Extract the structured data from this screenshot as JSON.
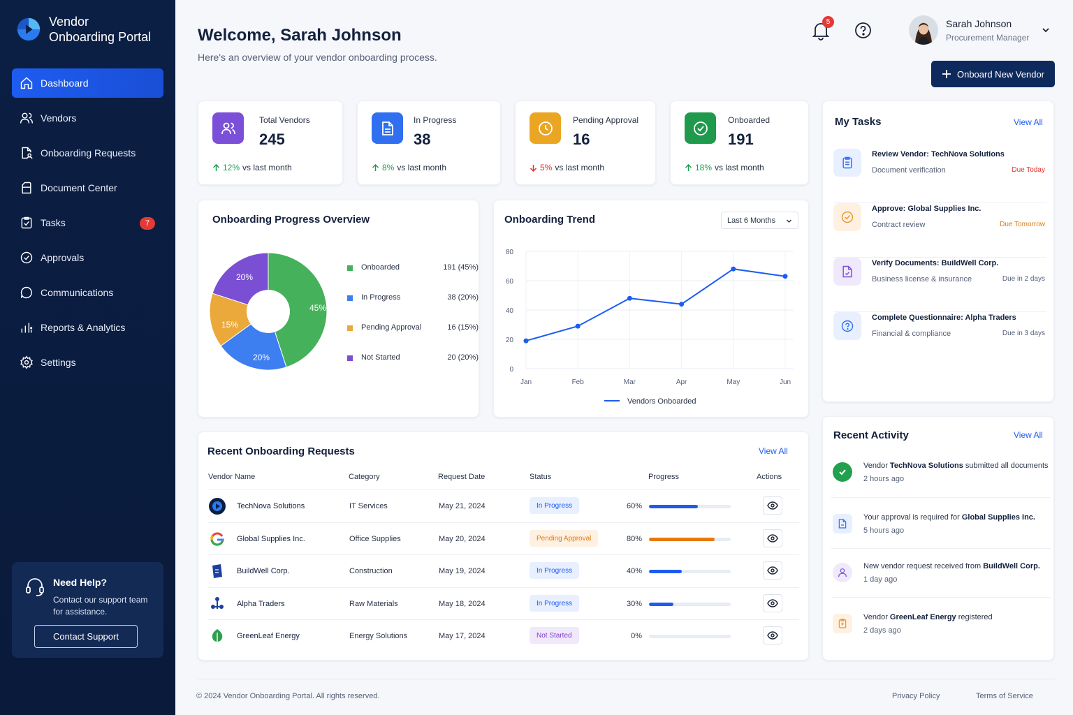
{
  "brand": {
    "line1": "Vendor",
    "line2": "Onboarding Portal"
  },
  "nav": [
    {
      "label": "Dashboard",
      "icon": "home-icon"
    },
    {
      "label": "Vendors",
      "icon": "users-icon"
    },
    {
      "label": "Onboarding Requests",
      "icon": "file-user-icon"
    },
    {
      "label": "Document Center",
      "icon": "folder-icon"
    },
    {
      "label": "Tasks",
      "icon": "clipboard-icon",
      "badge": "7"
    },
    {
      "label": "Approvals",
      "icon": "check-circle-icon"
    },
    {
      "label": "Communications",
      "icon": "chat-icon"
    },
    {
      "label": "Reports & Analytics",
      "icon": "bar-chart-icon"
    },
    {
      "label": "Settings",
      "icon": "gear-icon"
    }
  ],
  "help": {
    "title": "Need Help?",
    "text": "Contact our support team for assistance.",
    "button": "Contact Support"
  },
  "header": {
    "welcome": "Welcome, Sarah Johnson",
    "subtitle": "Here's an overview of your vendor onboarding process.",
    "notifications": "5",
    "user_name": "Sarah Johnson",
    "user_role": "Procurement Manager",
    "onboard_button": "Onboard New Vendor"
  },
  "stats": [
    {
      "label": "Total Vendors",
      "value": "245",
      "trend": "12%",
      "trend_dir": "up",
      "trend_text": "vs last month",
      "color": "#7b4fd8"
    },
    {
      "label": "In Progress",
      "value": "38",
      "trend": "8%",
      "trend_dir": "up",
      "trend_text": "vs last month",
      "color": "#2f6ff0"
    },
    {
      "label": "Pending Approval",
      "value": "16",
      "trend": "5%",
      "trend_dir": "down",
      "trend_text": "vs last month",
      "color": "#eaa623"
    },
    {
      "label": "Onboarded",
      "value": "191",
      "trend": "18%",
      "trend_dir": "up",
      "trend_text": "vs last month",
      "color": "#1f9a4d"
    }
  ],
  "progress_overview": {
    "title": "Onboarding Progress Overview",
    "legend": [
      {
        "label": "Onboarded",
        "value": "191 (45%)",
        "color": "#45b15b"
      },
      {
        "label": "In Progress",
        "value": "38 (20%)",
        "color": "#3d7ef0"
      },
      {
        "label": "Pending Approval",
        "value": "16 (15%)",
        "color": "#eaa93a"
      },
      {
        "label": "Not Started",
        "value": "20 (20%)",
        "color": "#7a4fd4"
      }
    ],
    "slice_labels": [
      "45%",
      "20%",
      "15%",
      "20%"
    ]
  },
  "chart_data": {
    "type": "line",
    "title": "Onboarding Trend",
    "range_selector": "Last 6 Months",
    "categories": [
      "Jan",
      "Feb",
      "Mar",
      "Apr",
      "May",
      "Jun"
    ],
    "series": [
      {
        "name": "Vendors Onboarded",
        "values": [
          19,
          29,
          48,
          44,
          68,
          63
        ]
      }
    ],
    "yticks": [
      "0",
      "20",
      "40",
      "60",
      "80"
    ],
    "ylim": [
      0,
      80
    ],
    "grid": true,
    "legend": "bottom"
  },
  "tasks": {
    "title": "My Tasks",
    "view_all": "View All",
    "items": [
      {
        "title": "Review Vendor: TechNova Solutions",
        "sub": "Document verification",
        "due": "Due Today",
        "due_color": "#e0312f",
        "icon": "clipboard-icon",
        "color": "#2f6ff0",
        "bg": "#e8efff"
      },
      {
        "title": "Approve: Global Supplies Inc.",
        "sub": "Contract review",
        "due": "Due Tomorrow",
        "due_color": "#e07a10",
        "icon": "check-circle-icon",
        "color": "#e8952a",
        "bg": "#fff1e2"
      },
      {
        "title": "Verify Documents: BuildWell Corp.",
        "sub": "Business license & insurance",
        "due": "Due in 2 days",
        "due_color": "#556077",
        "icon": "document-icon",
        "color": "#7b4fd8",
        "bg": "#f0e8fb"
      },
      {
        "title": "Complete Questionnaire: Alpha Traders",
        "sub": "Financial & compliance",
        "due": "Due in 3 days",
        "due_color": "#556077",
        "icon": "question-icon",
        "color": "#2f6ff0",
        "bg": "#e8efff"
      }
    ]
  },
  "requests": {
    "title": "Recent Onboarding Requests",
    "view_all": "View All",
    "headers": [
      "Vendor Name",
      "Category",
      "Request Date",
      "Status",
      "Progress",
      "Actions"
    ],
    "rows": [
      {
        "name": "TechNova Solutions",
        "category": "IT Services",
        "date": "May 21, 2024",
        "status": "In Progress",
        "status_type": "prog",
        "progress": 60,
        "progress_label": "60%",
        "bar_color": "#1e5cf0"
      },
      {
        "name": "Global Supplies Inc.",
        "category": "Office Supplies",
        "date": "May 20, 2024",
        "status": "Pending Approval",
        "status_type": "pend",
        "progress": 80,
        "progress_label": "80%",
        "bar_color": "#e8790f"
      },
      {
        "name": "BuildWell Corp.",
        "category": "Construction",
        "date": "May 19, 2024",
        "status": "In Progress",
        "status_type": "prog",
        "progress": 40,
        "progress_label": "40%",
        "bar_color": "#1e5cf0"
      },
      {
        "name": "Alpha Traders",
        "category": "Raw Materials",
        "date": "May 18, 2024",
        "status": "In Progress",
        "status_type": "prog",
        "progress": 30,
        "progress_label": "30%",
        "bar_color": "#1e5cf0"
      },
      {
        "name": "GreenLeaf Energy",
        "category": "Energy Solutions",
        "date": "May 17, 2024",
        "status": "Not Started",
        "status_type": "not",
        "progress": 0,
        "progress_label": "0%",
        "bar_color": "#1e5cf0"
      }
    ]
  },
  "activity": {
    "title": "Recent Activity",
    "view_all": "View All",
    "items": [
      {
        "pre": "Vendor ",
        "bold": "TechNova Solutions",
        "post": " submitted all documents",
        "time": "2 hours ago"
      },
      {
        "pre": "Your approval is required for ",
        "bold": "Global Supplies Inc.",
        "post": "",
        "time": "5 hours ago"
      },
      {
        "pre": "New vendor request received from ",
        "bold": "BuildWell Corp.",
        "post": "",
        "time": "1 day ago"
      },
      {
        "pre": "Vendor ",
        "bold": "GreenLeaf Energy",
        "post": " registered",
        "time": "2 days ago"
      }
    ]
  },
  "footer": {
    "copyright": "© 2024 Vendor Onboarding Portal. All rights reserved.",
    "privacy": "Privacy Policy",
    "terms": "Terms of Service"
  }
}
